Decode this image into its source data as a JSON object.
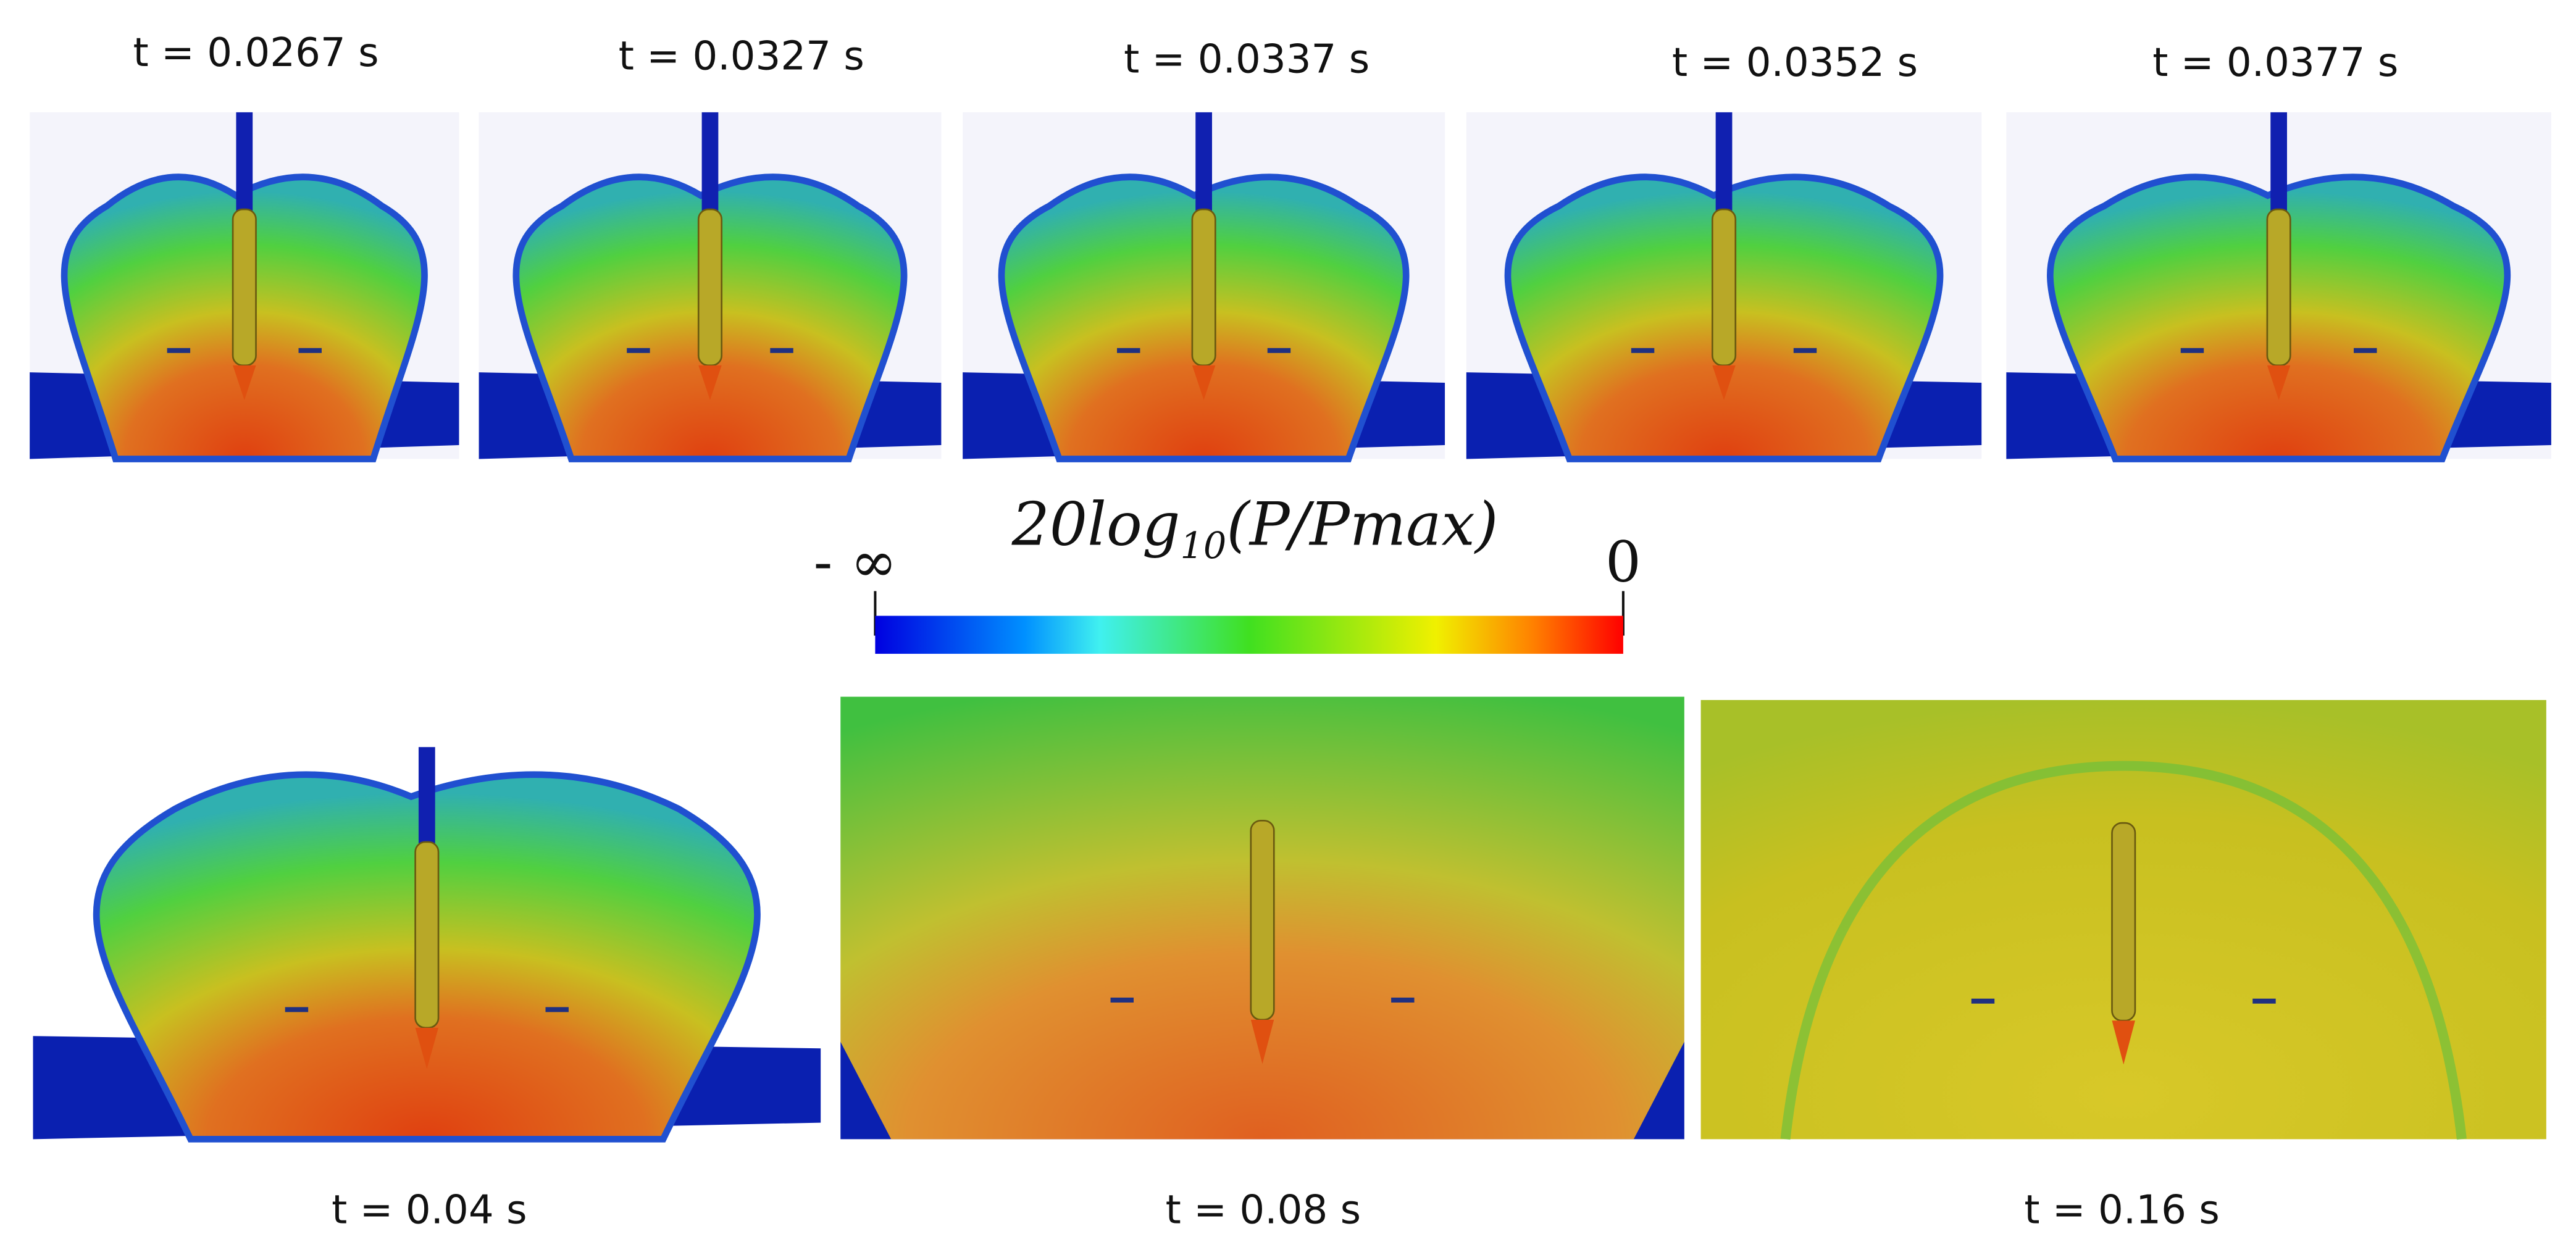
{
  "panels": [
    {
      "label": "t = 0.0267 s"
    },
    {
      "label": "t = 0.0327 s"
    },
    {
      "label": "t = 0.0337 s"
    },
    {
      "label": "t = 0.0352 s"
    },
    {
      "label": "t = 0.0377 s"
    },
    {
      "label": "t = 0.04 s"
    },
    {
      "label": "t = 0.08 s"
    },
    {
      "label": "t = 0.16 s"
    }
  ],
  "colorbar": {
    "title": "20log",
    "title_subscript": "10",
    "title_rest": "(P/Pmax)",
    "min_label": "- ∞",
    "max_label": "0"
  }
}
